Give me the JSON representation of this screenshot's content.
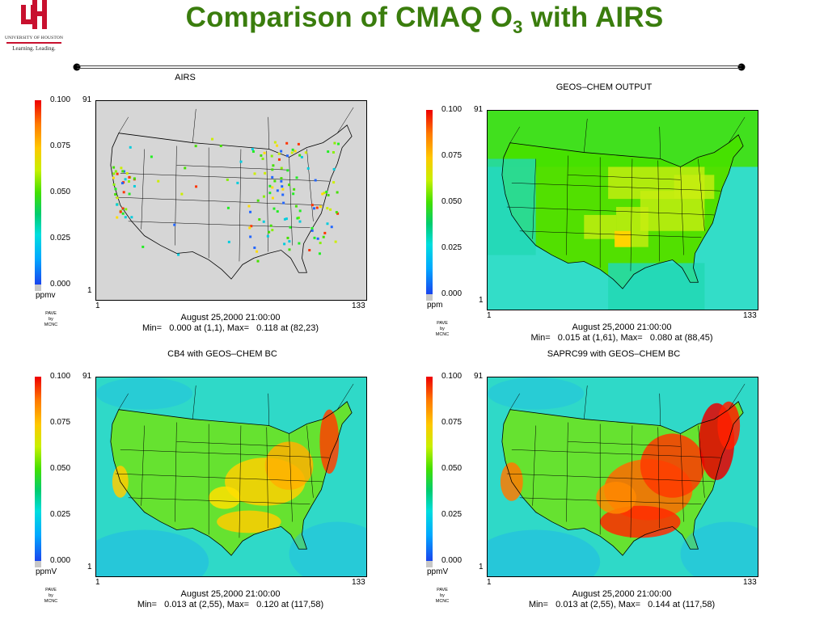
{
  "header": {
    "title_main": "Comparison of CMAQ O",
    "title_sub": "3",
    "title_tail": " with AIRS",
    "logo_university": "UNIVERSITY OF HOUSTON",
    "logo_tagline": "Learning. Leading.",
    "logo_color": "#c8102e",
    "title_color": "#3a7d0d"
  },
  "panels": [
    {
      "title": "AIRS",
      "unit": "ppmv",
      "colorbar_labels": [
        "0.100",
        "0.075",
        "0.050",
        "0.025",
        "0.000"
      ],
      "y_top": "91",
      "y_bottom": "1",
      "x_left": "1",
      "x_right": "133",
      "pave": [
        "PAVE",
        "by",
        "MCNC"
      ],
      "date": "August 25,2000 21:00:00",
      "minmax": "Min=   0.000 at (1,1), Max=   0.118 at (82,23)",
      "style": "stations"
    },
    {
      "title": "GEOS–CHEM OUTPUT",
      "unit": "ppm",
      "colorbar_labels": [
        "0.100",
        "0.075",
        "0.050",
        "0.025",
        "0.000"
      ],
      "y_top": "91",
      "y_bottom": "1",
      "x_left": "1",
      "x_right": "133",
      "pave": [
        "PAVE",
        "by",
        "MCNC"
      ],
      "date": "August 25,2000 21:00:00",
      "minmax": "Min=   0.015 at (1,61), Max=   0.080 at (88,45)",
      "style": "coarse"
    },
    {
      "title": "CB4 with GEOS–CHEM BC",
      "unit": "ppmV",
      "colorbar_labels": [
        "0.100",
        "0.075",
        "0.050",
        "0.025",
        "0.000"
      ],
      "y_top": "91",
      "y_bottom": "1",
      "x_left": "1",
      "x_right": "133",
      "pave": [
        "PAVE",
        "by",
        "MCNC"
      ],
      "date": "August 25,2000 21:00:00",
      "minmax": "Min=   0.013 at (2,55), Max=   0.120 at (117,58)",
      "style": "field_moderate"
    },
    {
      "title": "SAPRC99 with GEOS–CHEM BC",
      "unit": "ppmV",
      "colorbar_labels": [
        "0.100",
        "0.075",
        "0.050",
        "0.025",
        "0.000"
      ],
      "y_top": "91",
      "y_bottom": "1",
      "x_left": "1",
      "x_right": "133",
      "pave": [
        "PAVE",
        "by",
        "MCNC"
      ],
      "date": "August 25,2000 21:00:00",
      "minmax": "Min=   0.013 at (2,55), Max=   0.144 at (117,58)",
      "style": "field_high"
    }
  ]
}
